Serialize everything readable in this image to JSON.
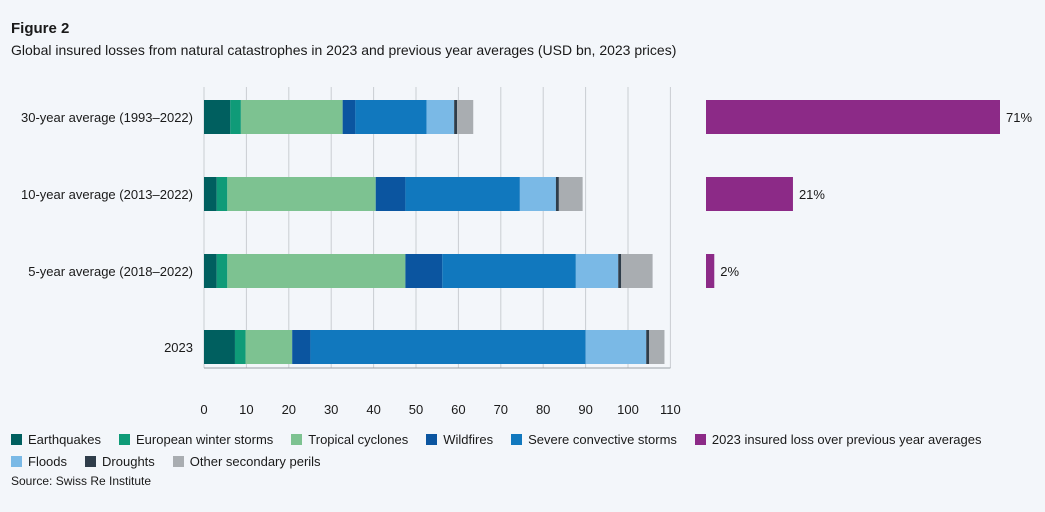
{
  "figure_label": "Figure 2",
  "title": "Global insured losses from natural catastrophes in 2023 and previous year averages (USD bn, 2023 prices)",
  "source": "Source: Swiss Re Institute",
  "colors": {
    "Earthquakes": "#005f5f",
    "European winter storms": "#0f9b78",
    "Tropical cyclones": "#7dc291",
    "Wildfires": "#0b55a0",
    "Severe convective storms": "#1178be",
    "Floods": "#7ab9e6",
    "Droughts": "#2f3d4a",
    "Other secondary perils": "#a9adb1",
    "2023 insured loss over previous year averages": "#8c2a87"
  },
  "legend": {
    "row1": [
      "Earthquakes",
      "European winter storms",
      "Tropical cyclones",
      "Wildfires",
      "Severe convective storms",
      "2023 insured loss over previous year averages"
    ],
    "row2": [
      "Floods",
      "Droughts",
      "Other secondary perils"
    ]
  },
  "chart_data": [
    {
      "type": "bar",
      "orientation": "horizontal",
      "stacked": true,
      "title": "",
      "categories": [
        "30-year average (1993–2022)",
        "10-year average (2013–2022)",
        "5-year average (2018–2022)",
        "2023"
      ],
      "xlim": [
        0,
        110
      ],
      "xticks": [
        0,
        10,
        20,
        30,
        40,
        50,
        60,
        70,
        80,
        90,
        100,
        110
      ],
      "grid": true,
      "series": [
        {
          "name": "Earthquakes",
          "values": [
            6.2,
            3.0,
            3.0,
            7.3
          ]
        },
        {
          "name": "European winter storms",
          "values": [
            2.5,
            2.5,
            2.5,
            2.5
          ]
        },
        {
          "name": "Tropical cyclones",
          "values": [
            24.0,
            35.0,
            42.0,
            11.0
          ]
        },
        {
          "name": "Wildfires",
          "values": [
            3.0,
            7.0,
            8.7,
            4.3
          ]
        },
        {
          "name": "Severe convective storms",
          "values": [
            16.8,
            27.0,
            31.5,
            64.9
          ]
        },
        {
          "name": "Floods",
          "values": [
            6.5,
            8.5,
            10.0,
            14.3
          ]
        },
        {
          "name": "Droughts",
          "values": [
            0.7,
            0.7,
            0.7,
            0.7
          ]
        },
        {
          "name": "Other secondary perils",
          "values": [
            3.8,
            5.6,
            7.4,
            3.6
          ]
        }
      ]
    },
    {
      "type": "bar",
      "orientation": "horizontal",
      "title": "",
      "categories": [
        "30-year average (1993–2022)",
        "10-year average (2013–2022)",
        "5-year average (2018–2022)"
      ],
      "series": [
        {
          "name": "2023 insured loss over previous year averages",
          "values": [
            71,
            21,
            2
          ],
          "labels": [
            "71%",
            "21%",
            "2%"
          ]
        }
      ],
      "xlim": [
        0,
        71
      ]
    }
  ]
}
